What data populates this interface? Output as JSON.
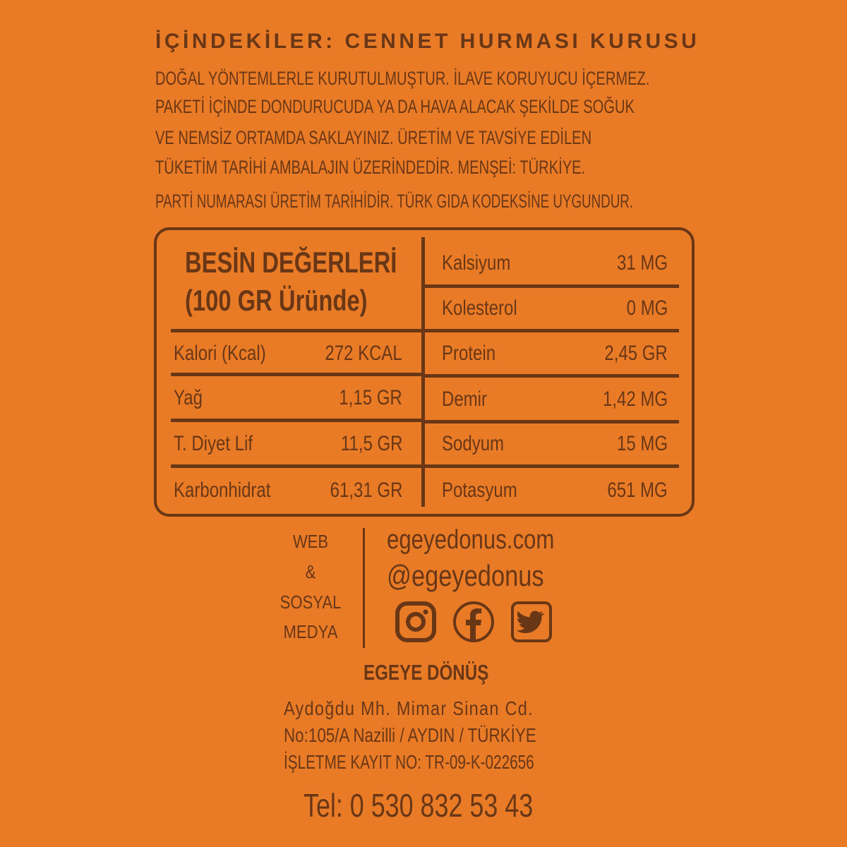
{
  "ingredients_title": "İÇİNDEKİLER: CENNET HURMASI KURUSU",
  "description_lines": [
    "DOĞAL YÖNTEMLERLE KURUTULMUŞTUR. İLAVE KORUYUCU İÇERMEZ.",
    "PAKETİ İÇİNDE DONDURUCUDA YA DA HAVA ALACAK ŞEKİLDE SOĞUK",
    "VE NEMSİZ ORTAMDA SAKLAYINIZ. ÜRETİM VE TAVSİYE EDİLEN",
    "TÜKETİM TARİHİ AMBALAJIN ÜZERİNDEDİR. MENŞEİ: TÜRKİYE.",
    "PARTİ NUMARASI ÜRETİM TARİHİDİR. TÜRK GIDA KODEKSİNE UYGUNDUR."
  ],
  "nutrition": {
    "title_line1": "BESİN DEĞERLERİ",
    "title_line2": "(100 GR Üründe)",
    "left": [
      {
        "name": "Kalori (Kcal)",
        "value": "272 KCAL"
      },
      {
        "name": "Yağ",
        "value": "1,15 GR"
      },
      {
        "name": "T. Diyet Lif",
        "value": "11,5 GR"
      },
      {
        "name": "Karbonhidrat",
        "value": "61,31 GR"
      }
    ],
    "right": [
      {
        "name": "Kalsiyum",
        "value": "31 MG"
      },
      {
        "name": "Kolesterol",
        "value": "0 MG"
      },
      {
        "name": "Protein",
        "value": "2,45 GR"
      },
      {
        "name": "Demir",
        "value": "1,42 MG"
      },
      {
        "name": "Sodyum",
        "value": "15 MG"
      },
      {
        "name": "Potasyum",
        "value": "651 MG"
      }
    ]
  },
  "social": {
    "label_lines": [
      "WEB",
      "&",
      "SOSYAL",
      "MEDYA"
    ],
    "website": "egeyedonus.com",
    "handle": "@egeyedonus",
    "icons": [
      "instagram-icon",
      "facebook-icon",
      "twitter-icon"
    ]
  },
  "company": {
    "name": "EGEYE DÖNÜŞ",
    "address1": "Aydoğdu Mh. Mimar Sinan Cd.",
    "address2": "No:105/A  Nazilli / AYDIN / TÜRKİYE",
    "registry": "İŞLETME KAYIT NO: TR-09-K-022656",
    "phone": "Tel: 0 530 832 53 43"
  },
  "colors": {
    "background": "#e97b27",
    "text": "#6a3716"
  }
}
